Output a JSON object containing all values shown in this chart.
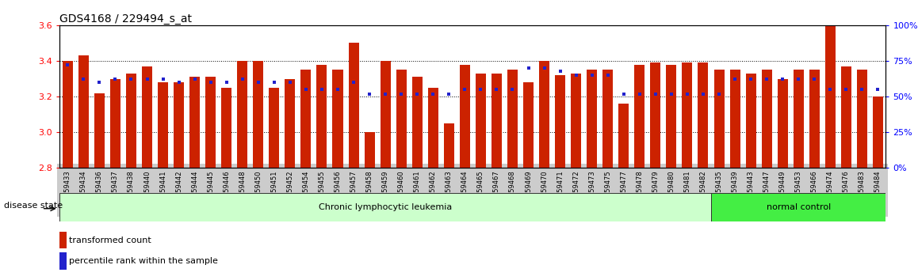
{
  "title": "GDS4168 / 229494_s_at",
  "samples": [
    "GSM559433",
    "GSM559434",
    "GSM559436",
    "GSM559437",
    "GSM559438",
    "GSM559440",
    "GSM559441",
    "GSM559442",
    "GSM559444",
    "GSM559445",
    "GSM559446",
    "GSM559448",
    "GSM559450",
    "GSM559451",
    "GSM559452",
    "GSM559454",
    "GSM559455",
    "GSM559456",
    "GSM559457",
    "GSM559458",
    "GSM559459",
    "GSM559460",
    "GSM559461",
    "GSM559462",
    "GSM559463",
    "GSM559464",
    "GSM559465",
    "GSM559467",
    "GSM559468",
    "GSM559469",
    "GSM559470",
    "GSM559471",
    "GSM559472",
    "GSM559473",
    "GSM559475",
    "GSM559477",
    "GSM559478",
    "GSM559479",
    "GSM559480",
    "GSM559481",
    "GSM559482",
    "GSM559435",
    "GSM559439",
    "GSM559443",
    "GSM559447",
    "GSM559449",
    "GSM559453",
    "GSM559466",
    "GSM559474",
    "GSM559476",
    "GSM559483",
    "GSM559484"
  ],
  "transformed_count": [
    3.4,
    3.43,
    3.22,
    3.3,
    3.33,
    3.37,
    3.28,
    3.28,
    3.31,
    3.31,
    3.25,
    3.4,
    3.4,
    3.25,
    3.3,
    3.35,
    3.38,
    3.35,
    3.5,
    3.0,
    3.4,
    3.35,
    3.31,
    3.25,
    3.05,
    3.38,
    3.33,
    3.33,
    3.35,
    3.28,
    3.4,
    3.32,
    3.33,
    3.35,
    3.35,
    3.16,
    3.38,
    3.39,
    3.38,
    3.39,
    3.39,
    3.35,
    3.35,
    3.33,
    3.35,
    3.3,
    3.35,
    3.35,
    3.6,
    3.37,
    3.35,
    3.2
  ],
  "percentile_rank": [
    72,
    62,
    60,
    62,
    62,
    62,
    62,
    60,
    62,
    60,
    60,
    62,
    60,
    60,
    60,
    55,
    55,
    55,
    60,
    52,
    52,
    52,
    52,
    52,
    52,
    55,
    55,
    55,
    55,
    70,
    70,
    68,
    65,
    65,
    65,
    52,
    52,
    52,
    52,
    52,
    52,
    52,
    62,
    62,
    62,
    62,
    62,
    62,
    55,
    55,
    55,
    55
  ],
  "ylim_left": [
    2.8,
    3.6
  ],
  "ylim_right": [
    0,
    100
  ],
  "y_ticks_left": [
    2.8,
    3.0,
    3.2,
    3.4,
    3.6
  ],
  "y_ticks_right": [
    0,
    25,
    50,
    75,
    100
  ],
  "disease_groups": [
    {
      "label": "Chronic lymphocytic leukemia",
      "start": 0,
      "end": 41,
      "color": "#ccffcc"
    },
    {
      "label": "normal control",
      "start": 41,
      "end": 52,
      "color": "#44ee44"
    }
  ],
  "bar_color": "#cc2200",
  "dot_color": "#2222cc",
  "bg_color": "#ffffff",
  "tick_bg": "#cccccc",
  "title_fontsize": 10,
  "tick_fontsize": 6,
  "label_fontsize": 8,
  "disease_fontsize": 8
}
